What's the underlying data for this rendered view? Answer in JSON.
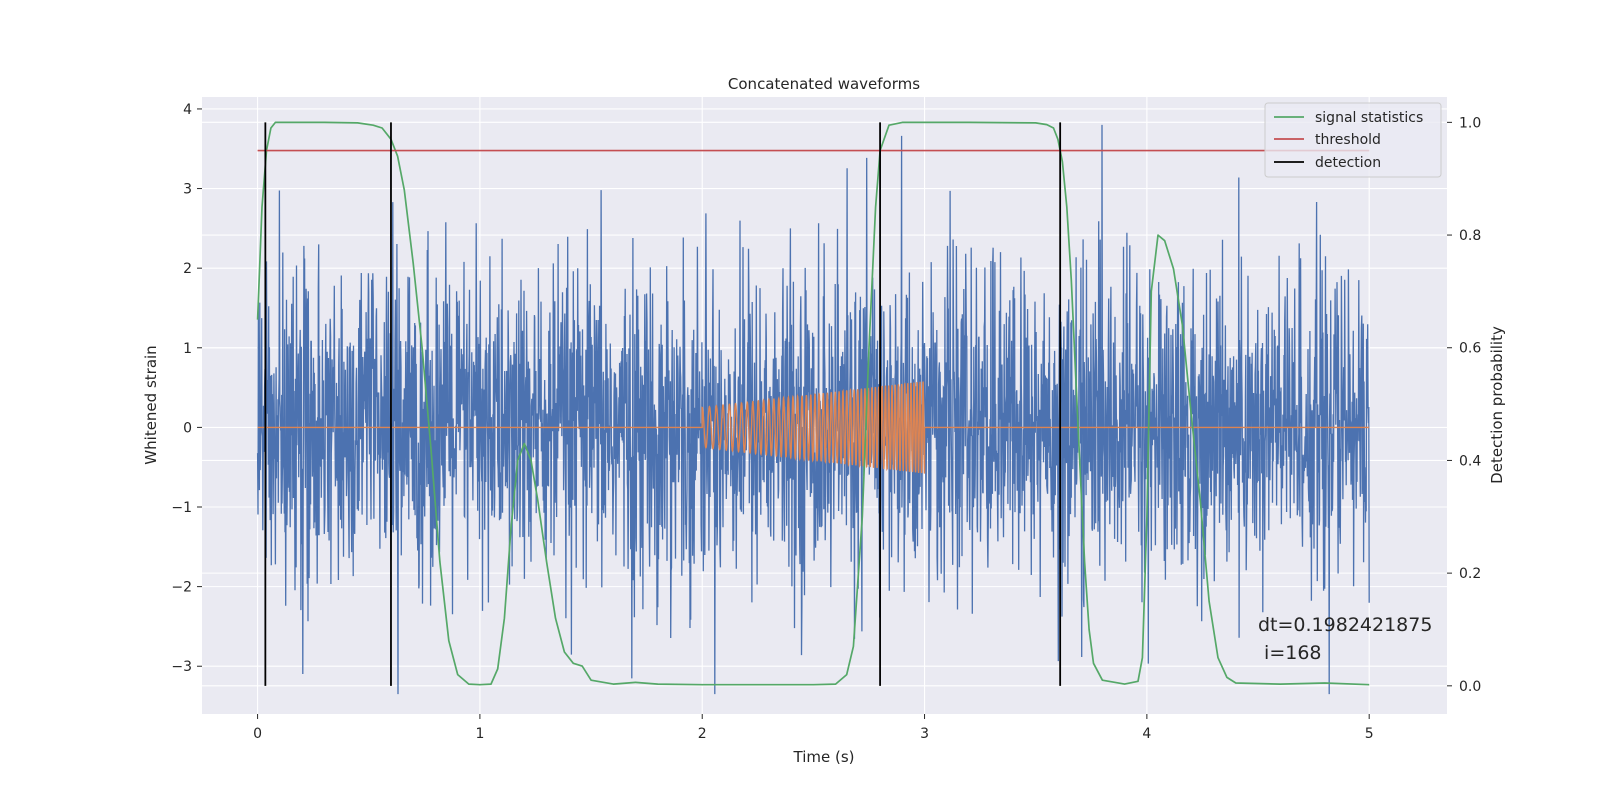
{
  "chart_data": {
    "type": "line",
    "title": "Concatenated waveforms",
    "xlabel": "Time (s)",
    "ylabel": "Whitened strain",
    "y2label": "Detection probability",
    "xlim": [
      -0.25,
      5.35
    ],
    "ylim": [
      -3.6,
      4.15
    ],
    "y2lim": [
      -0.05,
      1.045
    ],
    "x_ticks": [
      "0",
      "1",
      "2",
      "3",
      "4",
      "5"
    ],
    "y_ticks": [
      "−3",
      "−2",
      "−1",
      "0",
      "1",
      "2",
      "3",
      "4"
    ],
    "y2_ticks": [
      "0.0",
      "0.2",
      "0.4",
      "0.6",
      "0.8",
      "1.0"
    ],
    "grid": true,
    "legend_position": "top-right",
    "series": [
      {
        "kind": "noise",
        "color": "#4c72b0",
        "x_range": [
          0,
          5
        ],
        "typical_amplitude": 1.0,
        "peak_range": [
          -3.35,
          3.8
        ]
      },
      {
        "kind": "injection",
        "color": "#dd8452",
        "x_range": [
          0,
          5
        ],
        "chirp": {
          "t_start": 2.0,
          "t_end": 3.0,
          "amp_start": 0.25,
          "amp_end": 0.58
        }
      },
      {
        "name": "signal statistics",
        "axis": "right",
        "color": "#55a868",
        "x": [
          0,
          0.02,
          0.04,
          0.06,
          0.08,
          0.1,
          0.15,
          0.3,
          0.45,
          0.52,
          0.56,
          0.6,
          0.63,
          0.66,
          0.7,
          0.74,
          0.78,
          0.82,
          0.86,
          0.9,
          0.95,
          1.0,
          1.05,
          1.08,
          1.11,
          1.14,
          1.17,
          1.2,
          1.23,
          1.26,
          1.3,
          1.34,
          1.38,
          1.42,
          1.46,
          1.5,
          1.6,
          1.7,
          1.8,
          2.0,
          2.5,
          2.6,
          2.65,
          2.68,
          2.72,
          2.75,
          2.78,
          2.8,
          2.84,
          2.9,
          3.2,
          3.5,
          3.55,
          3.58,
          3.6,
          3.62,
          3.64,
          3.66,
          3.68,
          3.7,
          3.72,
          3.74,
          3.76,
          3.8,
          3.9,
          3.96,
          3.98,
          4.0,
          4.02,
          4.05,
          4.08,
          4.12,
          4.16,
          4.2,
          4.24,
          4.28,
          4.32,
          4.36,
          4.4,
          4.6,
          4.8,
          5.0
        ],
        "y": [
          0.65,
          0.85,
          0.95,
          0.99,
          1.0,
          1.0,
          1.0,
          1.0,
          0.999,
          0.995,
          0.99,
          0.97,
          0.94,
          0.88,
          0.75,
          0.6,
          0.42,
          0.22,
          0.08,
          0.02,
          0.003,
          0.002,
          0.003,
          0.03,
          0.12,
          0.28,
          0.4,
          0.43,
          0.4,
          0.33,
          0.22,
          0.12,
          0.06,
          0.04,
          0.035,
          0.01,
          0.003,
          0.006,
          0.003,
          0.002,
          0.002,
          0.003,
          0.02,
          0.07,
          0.3,
          0.6,
          0.85,
          0.95,
          0.995,
          1.0,
          1.0,
          0.999,
          0.996,
          0.99,
          0.97,
          0.93,
          0.85,
          0.72,
          0.55,
          0.38,
          0.22,
          0.1,
          0.04,
          0.01,
          0.003,
          0.008,
          0.05,
          0.3,
          0.7,
          0.8,
          0.79,
          0.74,
          0.64,
          0.48,
          0.33,
          0.15,
          0.05,
          0.015,
          0.005,
          0.003,
          0.005,
          0.002
        ]
      },
      {
        "name": "threshold",
        "axis": "right",
        "color": "#c44e52",
        "x": [
          0,
          5
        ],
        "y": [
          0.95,
          0.95
        ]
      },
      {
        "name": "detection",
        "axis": "right",
        "kind": "vlines",
        "color": "#000000",
        "x": [
          0.035,
          0.6,
          2.8,
          3.61
        ],
        "ymin": 0.0,
        "ymax": 1.0
      }
    ],
    "annotation": {
      "line1": "dt=0.1982421875",
      "line2": " i=168",
      "x": 4.5,
      "y": -2.95
    }
  },
  "colors": {
    "background": "#ffffff",
    "plot_background": "#eaeaf2",
    "grid": "#ffffff",
    "noise": "#4c72b0",
    "injection": "#dd8452",
    "statistic": "#55a868",
    "threshold": "#c44e52",
    "detection": "#000000"
  }
}
